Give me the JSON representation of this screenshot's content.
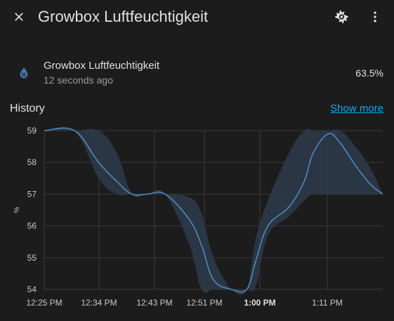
{
  "header": {
    "title": "Growbox Luftfeuchtigkeit",
    "close_icon": "close-icon",
    "settings_icon": "gear-icon",
    "more_icon": "more-vertical-icon"
  },
  "entity": {
    "icon": "water-percent-icon",
    "name": "Growbox Luftfeuchtigkeit",
    "last_changed": "12 seconds ago",
    "state": "63.5%"
  },
  "history": {
    "title": "History",
    "show_more": "Show more"
  },
  "colors": {
    "background": "#1c1c1c",
    "line": "#4e89c0",
    "band": "#2c3a48",
    "link": "#03a9f4",
    "icon": "#4577b0"
  },
  "chart_data": {
    "type": "line",
    "ylabel": "%",
    "ylim": [
      54,
      59
    ],
    "yticks": [
      "59",
      "58",
      "57",
      "56",
      "55",
      "54"
    ],
    "xticks": [
      {
        "label": "12:25 PM",
        "bold": false
      },
      {
        "label": "12:34 PM",
        "bold": false
      },
      {
        "label": "12:43 PM",
        "bold": false
      },
      {
        "label": "12:51 PM",
        "bold": false
      },
      {
        "label": "1:00 PM",
        "bold": true
      },
      {
        "label": "1:11 PM",
        "bold": false
      }
    ],
    "series": [
      {
        "name": "",
        "x_minutes": [
          0,
          5,
          9,
          12,
          14.5,
          17,
          20,
          24,
          26,
          28,
          31,
          33.5,
          35,
          37,
          40.5,
          43,
          44.5,
          47,
          49,
          51.5,
          54,
          56
        ],
        "mean": [
          59,
          59,
          58.0,
          57.4,
          57.0,
          57.0,
          57.0,
          56.2,
          55.4,
          54.3,
          54.0,
          54.0,
          54.9,
          56.0,
          56.6,
          57.4,
          58.3,
          58.9,
          58.6,
          57.9,
          57.3,
          57.0
        ],
        "min": [
          59,
          59,
          57.5,
          57.0,
          57.0,
          57.0,
          57.0,
          55.4,
          54.0,
          54.0,
          54.0,
          54.0,
          54.1,
          55.7,
          56.3,
          56.8,
          57.0,
          57.0,
          57.0,
          57.0,
          57.0,
          57.0
        ],
        "max": [
          59,
          59,
          59.0,
          58.3,
          57.0,
          57.0,
          57.0,
          56.9,
          56.4,
          55.0,
          54.0,
          54.0,
          55.6,
          56.8,
          58.3,
          59.0,
          59.0,
          59.0,
          59.0,
          58.5,
          57.8,
          57.0
        ]
      }
    ],
    "grid": true
  }
}
